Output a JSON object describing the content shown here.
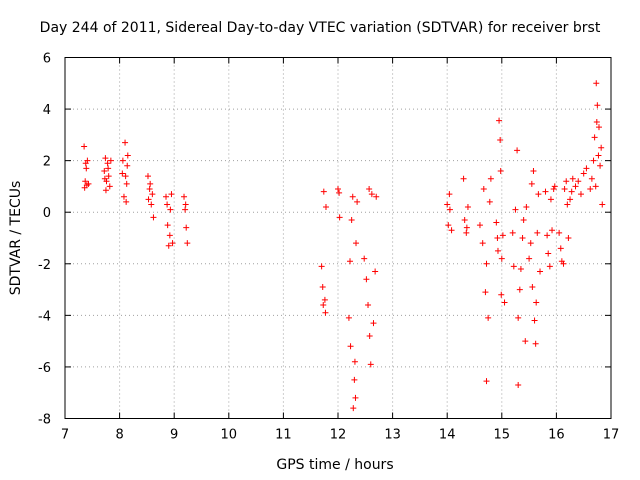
{
  "chart_data": {
    "type": "scatter",
    "title": "Day 244 of 2011, Sidereal Day-to-day VTEC variation (SDTVAR) for receiver brst",
    "xlabel": "GPS time / hours",
    "ylabel": "SDTVAR / TECUs",
    "xlim": [
      7,
      17
    ],
    "ylim": [
      -8,
      6
    ],
    "xticks": [
      7,
      8,
      9,
      10,
      11,
      12,
      13,
      14,
      15,
      16,
      17
    ],
    "yticks": [
      -8,
      -6,
      -4,
      -2,
      0,
      2,
      4,
      6
    ],
    "grid": true,
    "marker": "+",
    "color": "#ff0000",
    "series": [
      {
        "name": "SDTVAR",
        "points": [
          [
            7.35,
            2.55
          ],
          [
            7.38,
            1.9
          ],
          [
            7.39,
            1.7
          ],
          [
            7.41,
            2.0
          ],
          [
            7.37,
            1.2
          ],
          [
            7.4,
            1.05
          ],
          [
            7.43,
            1.1
          ],
          [
            7.36,
            0.95
          ],
          [
            7.72,
            1.6
          ],
          [
            7.74,
            2.1
          ],
          [
            7.76,
            1.2
          ],
          [
            7.78,
            1.9
          ],
          [
            7.8,
            1.4
          ],
          [
            7.82,
            1.0
          ],
          [
            7.75,
            0.85
          ],
          [
            7.79,
            1.7
          ],
          [
            7.84,
            2.0
          ],
          [
            7.73,
            1.3
          ],
          [
            8.05,
            1.5
          ],
          [
            8.08,
            0.6
          ],
          [
            8.1,
            2.7
          ],
          [
            8.12,
            0.4
          ],
          [
            8.13,
            1.1
          ],
          [
            8.15,
            2.2
          ],
          [
            8.14,
            1.8
          ],
          [
            8.11,
            1.4
          ],
          [
            8.06,
            2.0
          ],
          [
            8.52,
            1.4
          ],
          [
            8.55,
            0.9
          ],
          [
            8.58,
            0.3
          ],
          [
            8.6,
            0.7
          ],
          [
            8.62,
            -0.2
          ],
          [
            8.56,
            1.1
          ],
          [
            8.53,
            0.5
          ],
          [
            8.85,
            0.6
          ],
          [
            8.88,
            -0.5
          ],
          [
            8.9,
            -1.3
          ],
          [
            8.93,
            0.1
          ],
          [
            8.95,
            0.7
          ],
          [
            8.92,
            -0.9
          ],
          [
            8.87,
            0.3
          ],
          [
            8.97,
            -1.2
          ],
          [
            9.18,
            0.6
          ],
          [
            9.2,
            0.1
          ],
          [
            9.22,
            -0.6
          ],
          [
            9.24,
            -1.2
          ],
          [
            9.21,
            0.3
          ],
          [
            11.7,
            -2.1
          ],
          [
            11.72,
            -2.9
          ],
          [
            11.74,
            0.8
          ],
          [
            11.76,
            -3.4
          ],
          [
            11.78,
            0.2
          ],
          [
            11.77,
            -3.9
          ],
          [
            11.73,
            -3.6
          ],
          [
            12.0,
            0.9
          ],
          [
            12.02,
            0.75
          ],
          [
            12.03,
            -0.2
          ],
          [
            12.2,
            -4.1
          ],
          [
            12.22,
            -1.9
          ],
          [
            12.23,
            -5.2
          ],
          [
            12.25,
            -0.3
          ],
          [
            12.27,
            0.6
          ],
          [
            12.28,
            -7.6
          ],
          [
            12.3,
            -6.5
          ],
          [
            12.32,
            -7.2
          ],
          [
            12.33,
            -1.2
          ],
          [
            12.35,
            0.4
          ],
          [
            12.31,
            -5.8
          ],
          [
            12.48,
            -1.8
          ],
          [
            12.52,
            -2.6
          ],
          [
            12.55,
            -3.6
          ],
          [
            12.57,
            0.9
          ],
          [
            12.58,
            -4.8
          ],
          [
            12.6,
            -5.9
          ],
          [
            12.62,
            0.7
          ],
          [
            12.65,
            -4.3
          ],
          [
            12.68,
            -2.3
          ],
          [
            12.7,
            0.6
          ],
          [
            14.0,
            0.3
          ],
          [
            14.02,
            -0.5
          ],
          [
            14.05,
            0.1
          ],
          [
            14.08,
            -0.7
          ],
          [
            14.04,
            0.7
          ],
          [
            14.3,
            1.3
          ],
          [
            14.32,
            -0.3
          ],
          [
            14.35,
            -0.8
          ],
          [
            14.38,
            0.2
          ],
          [
            14.36,
            -0.6
          ],
          [
            14.6,
            -0.5
          ],
          [
            14.65,
            -1.2
          ],
          [
            14.7,
            -3.1
          ],
          [
            14.72,
            -2.0
          ],
          [
            14.75,
            -4.1
          ],
          [
            14.72,
            -6.55
          ],
          [
            14.78,
            0.4
          ],
          [
            14.8,
            1.3
          ],
          [
            14.67,
            0.9
          ],
          [
            14.9,
            -0.4
          ],
          [
            14.92,
            -1.0
          ],
          [
            14.93,
            -1.5
          ],
          [
            14.95,
            3.55
          ],
          [
            14.97,
            2.8
          ],
          [
            14.99,
            -3.2
          ],
          [
            15.0,
            -1.8
          ],
          [
            15.02,
            -0.9
          ],
          [
            15.05,
            -3.5
          ],
          [
            14.98,
            1.6
          ],
          [
            15.2,
            -0.8
          ],
          [
            15.22,
            -2.1
          ],
          [
            15.25,
            0.1
          ],
          [
            15.28,
            2.4
          ],
          [
            15.3,
            -4.1
          ],
          [
            15.33,
            -3.0
          ],
          [
            15.35,
            -2.2
          ],
          [
            15.38,
            -1.0
          ],
          [
            15.4,
            -0.3
          ],
          [
            15.3,
            -6.7
          ],
          [
            15.43,
            -5.0
          ],
          [
            15.45,
            0.2
          ],
          [
            15.5,
            -1.8
          ],
          [
            15.53,
            -1.2
          ],
          [
            15.55,
            1.1
          ],
          [
            15.58,
            1.6
          ],
          [
            15.6,
            -4.2
          ],
          [
            15.62,
            -5.1
          ],
          [
            15.63,
            -3.5
          ],
          [
            15.65,
            -0.8
          ],
          [
            15.67,
            0.7
          ],
          [
            15.7,
            -2.3
          ],
          [
            15.56,
            -2.9
          ],
          [
            15.8,
            0.8
          ],
          [
            15.83,
            -0.9
          ],
          [
            15.85,
            -1.6
          ],
          [
            15.88,
            -2.1
          ],
          [
            15.9,
            0.5
          ],
          [
            15.92,
            -0.7
          ],
          [
            15.95,
            0.9
          ],
          [
            15.97,
            1.0
          ],
          [
            16.05,
            -0.8
          ],
          [
            16.08,
            -1.4
          ],
          [
            16.1,
            -1.9
          ],
          [
            16.13,
            -2.0
          ],
          [
            16.15,
            0.9
          ],
          [
            16.18,
            1.2
          ],
          [
            16.2,
            0.3
          ],
          [
            16.22,
            -1.0
          ],
          [
            16.25,
            0.5
          ],
          [
            16.28,
            0.8
          ],
          [
            16.3,
            1.3
          ],
          [
            16.35,
            1.0
          ],
          [
            16.4,
            1.2
          ],
          [
            16.45,
            0.7
          ],
          [
            16.5,
            1.5
          ],
          [
            16.55,
            1.7
          ],
          [
            16.62,
            0.9
          ],
          [
            16.65,
            1.3
          ],
          [
            16.68,
            2.0
          ],
          [
            16.7,
            2.9
          ],
          [
            16.72,
            1.0
          ],
          [
            16.74,
            3.5
          ],
          [
            16.75,
            4.15
          ],
          [
            16.73,
            5.0
          ],
          [
            16.78,
            3.3
          ],
          [
            16.8,
            1.8
          ],
          [
            16.82,
            2.5
          ],
          [
            16.84,
            0.3
          ],
          [
            16.77,
            2.2
          ]
        ]
      }
    ]
  }
}
